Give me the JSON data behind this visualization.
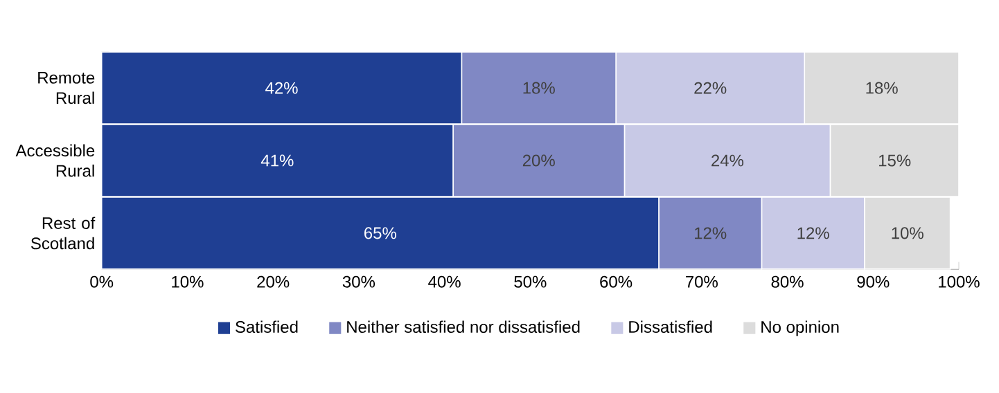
{
  "chart_data": {
    "type": "bar",
    "orientation": "horizontal",
    "stacked": true,
    "categories": [
      "Remote Rural",
      "Accessible Rural",
      "Rest of Scotland"
    ],
    "series": [
      {
        "name": "Satisfied",
        "color": "#1f3f93",
        "values": [
          42,
          41,
          65
        ],
        "value_labels": [
          "42%",
          "41%",
          "65%"
        ]
      },
      {
        "name": "Neither satisfied nor dissatisfied",
        "color": "#8088c4",
        "values": [
          18,
          20,
          12
        ],
        "value_labels": [
          "18%",
          "20%",
          "12%"
        ]
      },
      {
        "name": "Dissatisfied",
        "color": "#c8c9e6",
        "values": [
          22,
          24,
          12
        ],
        "value_labels": [
          "22%",
          "24%",
          "12%"
        ]
      },
      {
        "name": "No opinion",
        "color": "#dcdcdc",
        "values": [
          18,
          15,
          10
        ],
        "value_labels": [
          "18%",
          "15%",
          "10%"
        ]
      }
    ],
    "xlim": [
      0,
      100
    ],
    "xticks": [
      {
        "value": 0,
        "label": "0%"
      },
      {
        "value": 10,
        "label": "10%"
      },
      {
        "value": 20,
        "label": "20%"
      },
      {
        "value": 30,
        "label": "30%"
      },
      {
        "value": 40,
        "label": "40%"
      },
      {
        "value": 50,
        "label": "50%"
      },
      {
        "value": 60,
        "label": "60%"
      },
      {
        "value": 70,
        "label": "70%"
      },
      {
        "value": 80,
        "label": "80%"
      },
      {
        "value": 90,
        "label": "90%"
      },
      {
        "value": 100,
        "label": "100%"
      }
    ],
    "legend": "bottom"
  }
}
